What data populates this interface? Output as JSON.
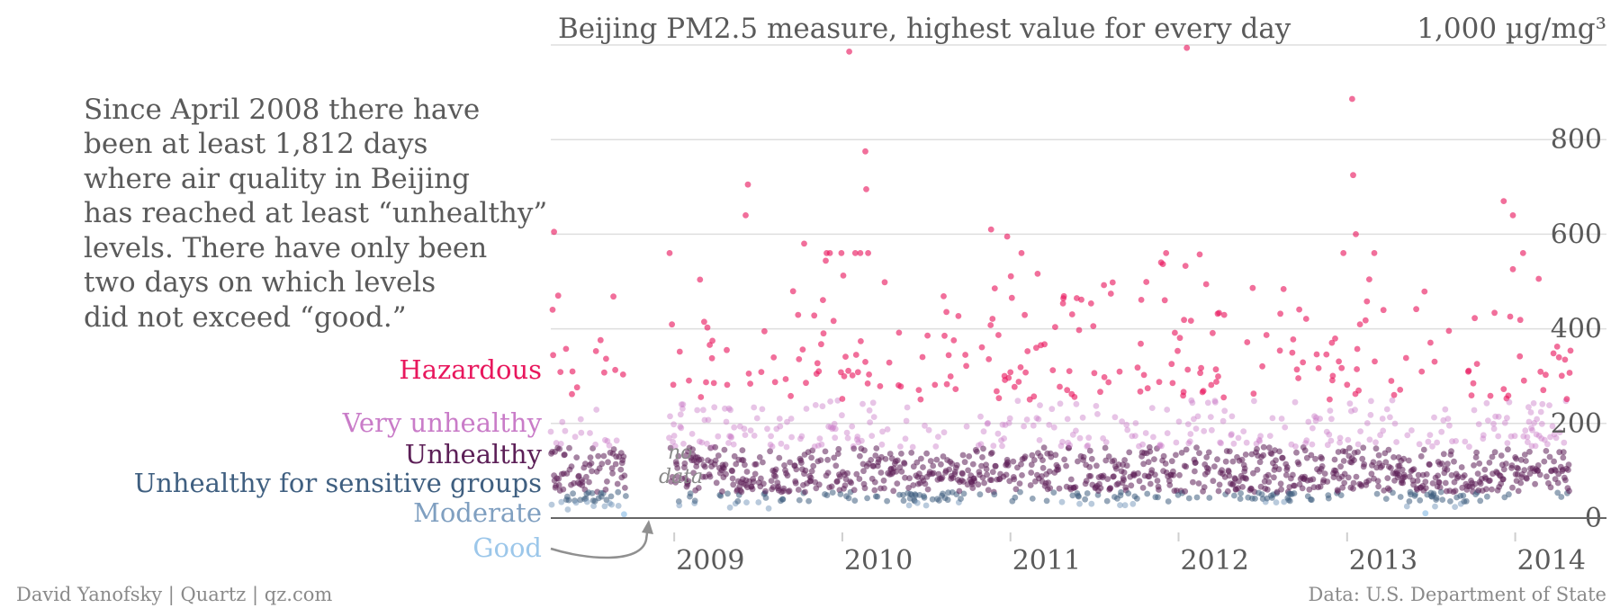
{
  "chart_data": {
    "type": "scatter",
    "title": "Beijing PM2.5 measure, highest value for every day",
    "ylabel": "1,000 µg/mg³",
    "ylim": [
      0,
      1000
    ],
    "yticks": [
      {
        "value": 0,
        "label": "0"
      },
      {
        "value": 200,
        "label": "200"
      },
      {
        "value": 400,
        "label": "400"
      },
      {
        "value": 600,
        "label": "600"
      },
      {
        "value": 800,
        "label": "800"
      }
    ],
    "xlim": [
      "2008-04-08",
      "2014-05-01"
    ],
    "xticks": [
      {
        "date": "2009-01-01",
        "label": "2009"
      },
      {
        "date": "2010-01-01",
        "label": "2010"
      },
      {
        "date": "2011-01-01",
        "label": "2011"
      },
      {
        "date": "2012-01-01",
        "label": "2012"
      },
      {
        "date": "2013-01-01",
        "label": "2013"
      },
      {
        "date": "2014-01-01",
        "label": "2014"
      }
    ],
    "gap": {
      "start": "2008-09-20",
      "end": "2008-12-20",
      "label_line1": "no",
      "label_line2": "data"
    },
    "categories": [
      {
        "name": "Hazardous",
        "min": 250,
        "max": 1000,
        "color": "#e8175d"
      },
      {
        "name": "Very unhealthy",
        "min": 150,
        "max": 250,
        "color": "#c97cc8"
      },
      {
        "name": "Unhealthy",
        "min": 55,
        "max": 150,
        "color": "#5c1f57"
      },
      {
        "name": "Unhealthy for sensitive groups",
        "min": 35,
        "max": 55,
        "color": "#3f5f80"
      },
      {
        "name": "Moderate",
        "min": 12,
        "max": 35,
        "color": "#7f9fc0"
      },
      {
        "name": "Good",
        "min": 0,
        "max": 12,
        "color": "#9cc7ea"
      }
    ],
    "highlights": [
      {
        "date": "2008-04-15",
        "value": 605
      },
      {
        "date": "2010-01-16",
        "value": 986
      },
      {
        "date": "2010-02-20",
        "value": 775
      },
      {
        "date": "2010-02-22",
        "value": 695
      },
      {
        "date": "2009-06-10",
        "value": 705
      },
      {
        "date": "2009-06-05",
        "value": 640
      },
      {
        "date": "2009-10-10",
        "value": 580
      },
      {
        "date": "2010-11-20",
        "value": 610
      },
      {
        "date": "2010-12-25",
        "value": 595
      },
      {
        "date": "2012-01-19",
        "value": 994
      },
      {
        "date": "2013-01-12",
        "value": 886
      },
      {
        "date": "2013-01-14",
        "value": 725
      },
      {
        "date": "2013-01-20",
        "value": 600
      },
      {
        "date": "2013-12-07",
        "value": 670
      },
      {
        "date": "2013-12-27",
        "value": 640
      }
    ]
  },
  "note_lines": [
    "Since April 2008 there have",
    "been at least 1,812 days",
    "where air quality in Beijing",
    "has reached at least “unhealthy”",
    "levels. There have only been",
    "two days on which levels",
    "did not exceed “good.”"
  ],
  "footer": {
    "credit": "David Yanofsky | Quartz | qz.com",
    "source": "Data: U.S. Department of State"
  }
}
